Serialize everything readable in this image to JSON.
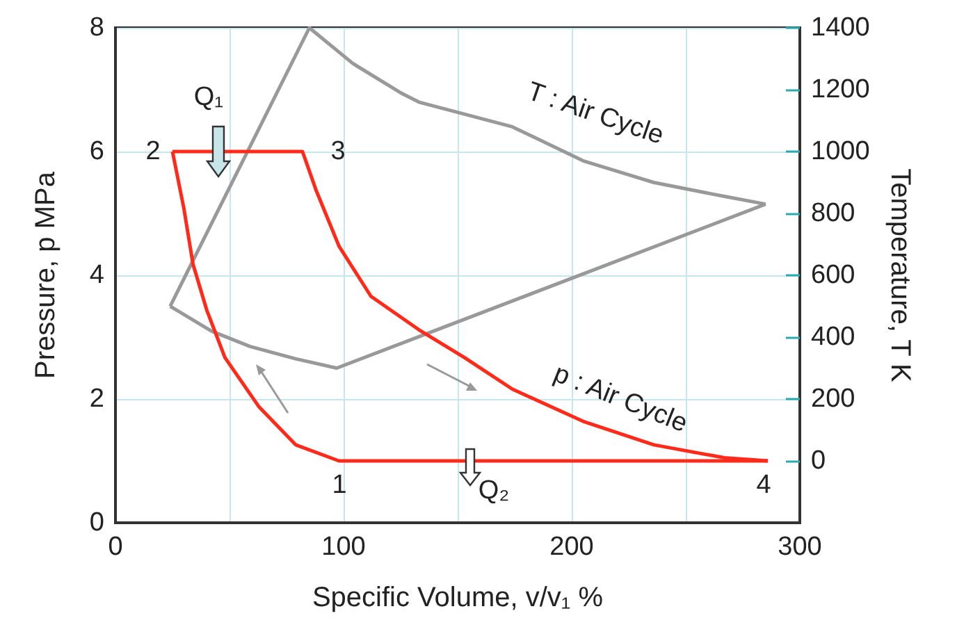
{
  "chart_data": {
    "type": "line",
    "xlabel": "Specific Volume, v/v₁ %",
    "ylabel": "Pressure, p MPa",
    "y2label": "Temperature, T K",
    "xlim": [
      0,
      300
    ],
    "xticks": [
      0,
      {
        "value": 50,
        "label": null
      },
      100,
      {
        "value": 150,
        "label": null
      },
      200,
      {
        "value": 250,
        "label": null
      },
      300
    ],
    "ylim": [
      0,
      8
    ],
    "yticks": [
      0,
      2,
      4,
      6,
      8
    ],
    "y2lim": [
      -200,
      1400
    ],
    "y2ticks": [
      0,
      200,
      400,
      600,
      800,
      1000,
      1200,
      1400
    ],
    "grid": true,
    "marker": "none",
    "line_style": "solid",
    "series": [
      {
        "color": "#ff2a1a",
        "x": [
          25,
          82,
          88,
          98,
          112,
          133,
          153,
          174,
          205,
          236,
          267,
          286
        ],
        "values": [
          6,
          6,
          5.37,
          4.47,
          3.66,
          3.12,
          2.67,
          2.16,
          1.64,
          1.26,
          1.05,
          1
        ]
      },
      {
        "color": "#ff2a1a",
        "x": [
          25,
          30,
          34,
          40,
          48,
          63,
          79,
          98,
          286
        ],
        "values": [
          6,
          5.08,
          4.18,
          3.44,
          2.67,
          1.87,
          1.26,
          1,
          1
        ]
      },
      {
        "color": "#999999",
        "axis": "y2",
        "x": [
          24,
          85,
          104,
          125,
          133,
          174,
          205,
          236,
          267,
          285
        ],
        "values": [
          500,
          1400,
          1285,
          1190,
          1160,
          1080,
          970,
          900,
          855,
          830
        ]
      },
      {
        "color": "#999999",
        "axis": "y2",
        "x": [
          24,
          42,
          59,
          79,
          97,
          285
        ],
        "values": [
          500,
          420,
          370,
          330,
          300,
          830
        ]
      }
    ],
    "annotations": [
      "Q₁",
      "Q₂",
      "1",
      "2",
      "3",
      "4",
      "T : Air Cycle",
      "p : Air Cycle"
    ]
  }
}
